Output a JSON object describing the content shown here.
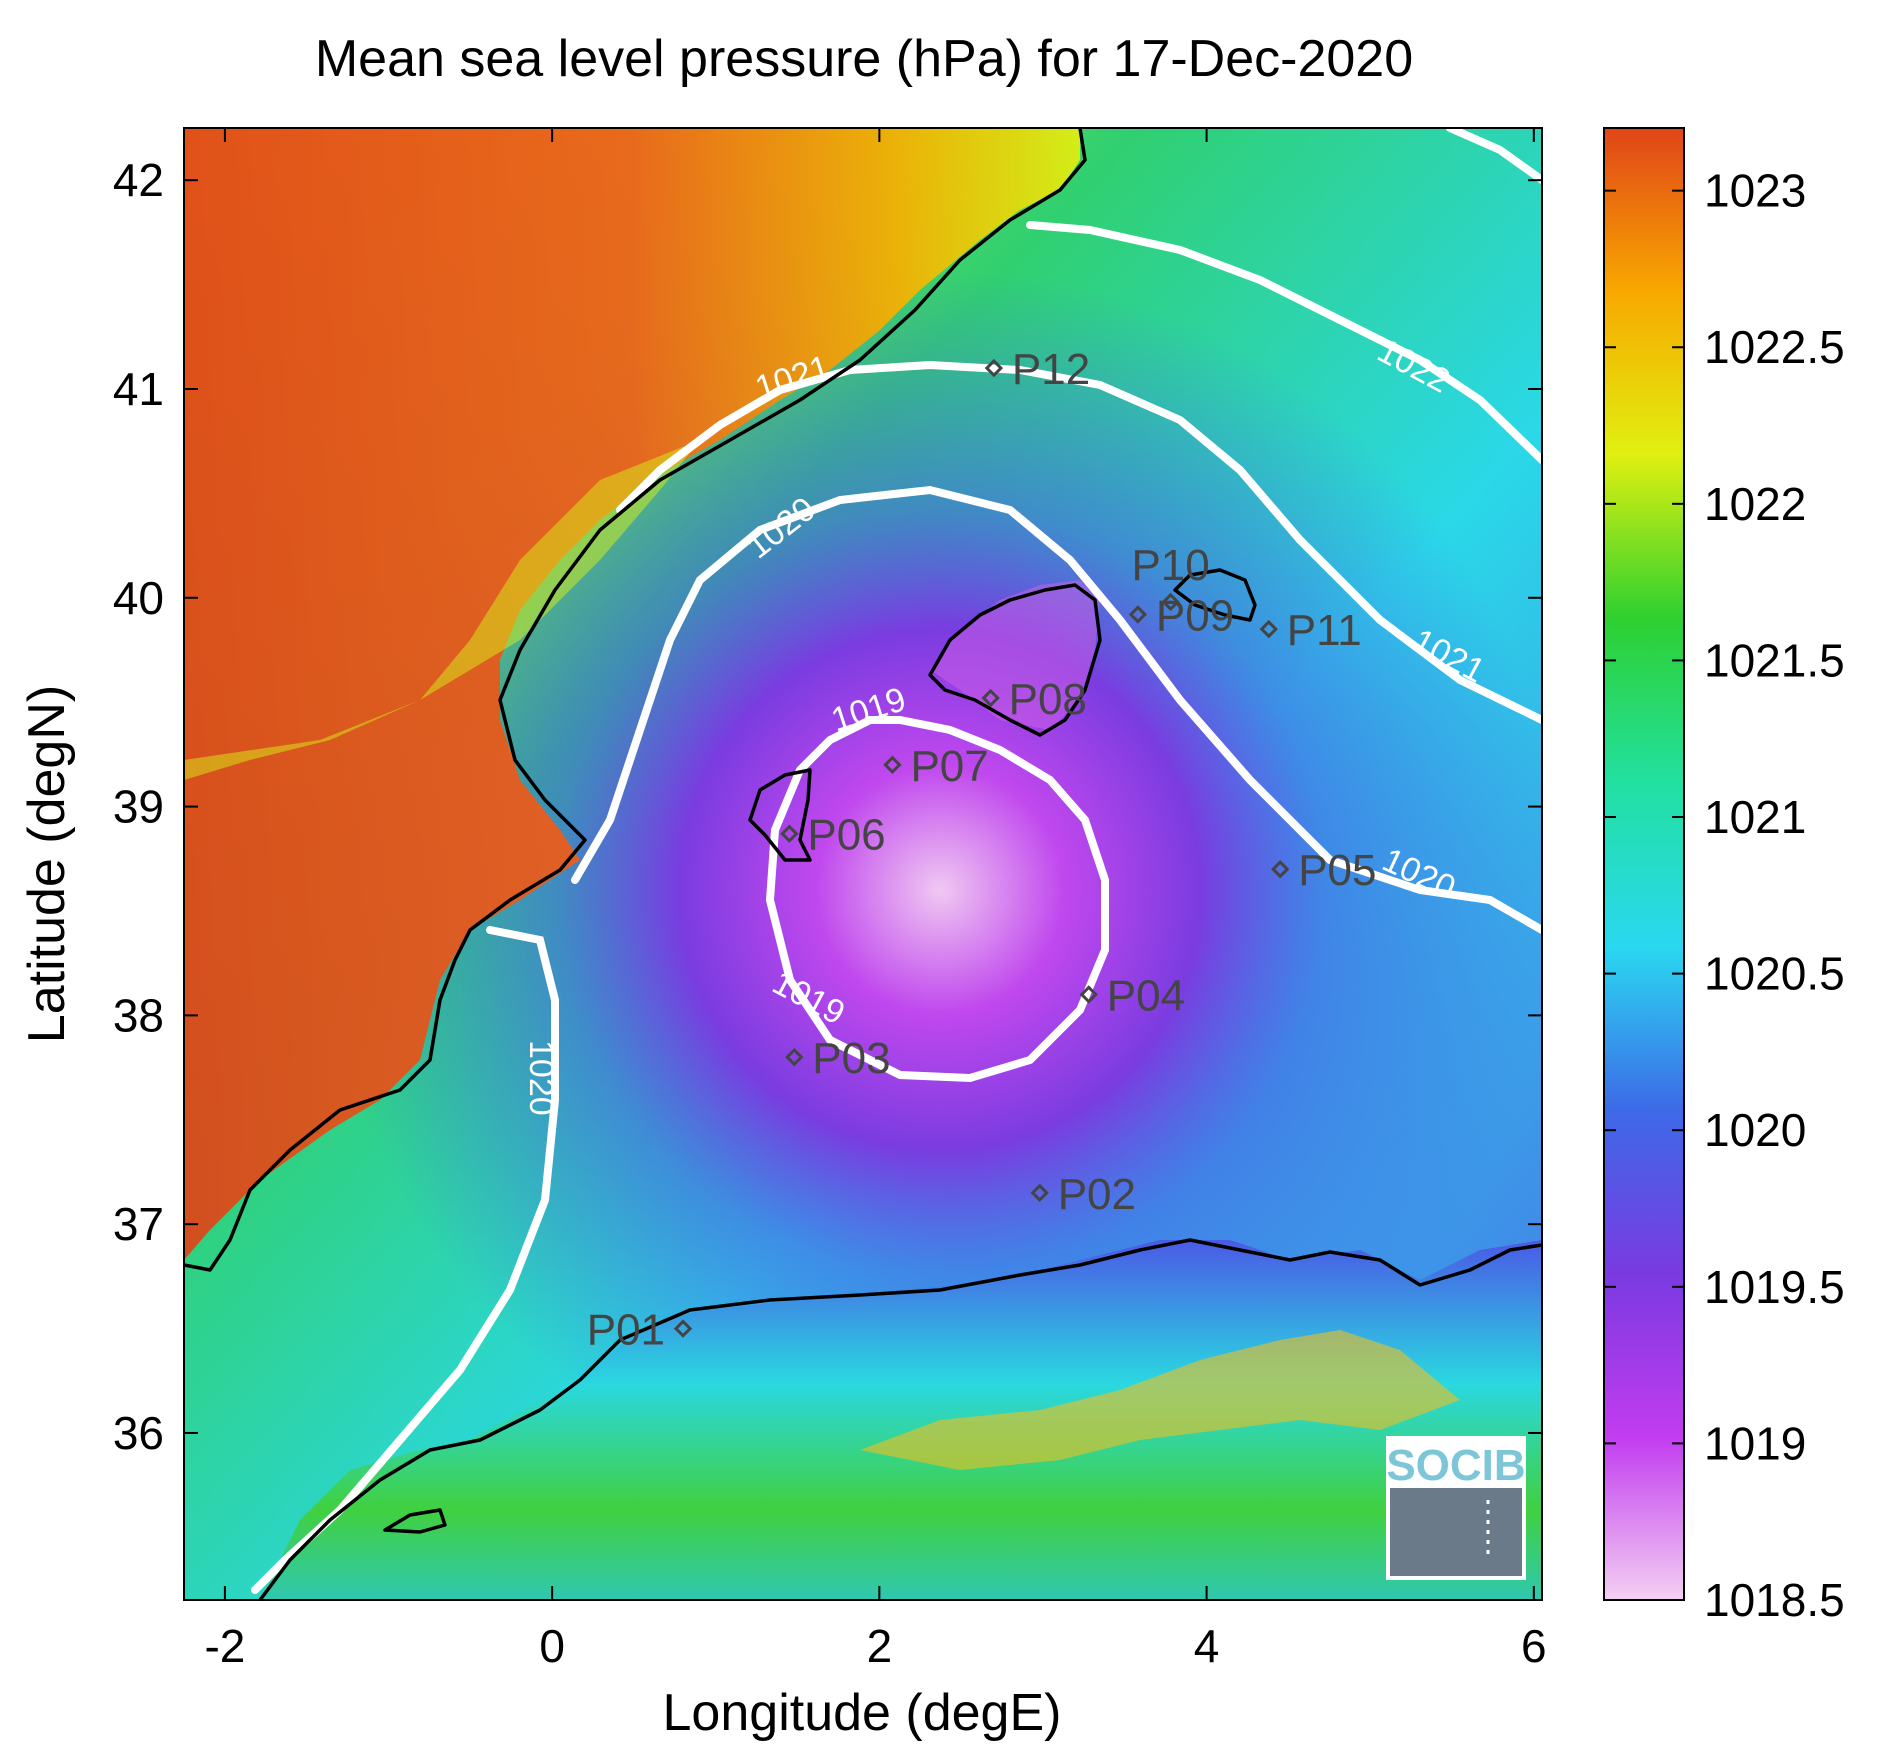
{
  "figure": {
    "title": "Mean sea level pressure (hPa) for 17-Dec-2020",
    "xlabel": "Longitude (degE)",
    "ylabel": "Latitude (degN)"
  },
  "axes": {
    "x_ticks": [
      "-2",
      "0",
      "2",
      "4",
      "6"
    ],
    "y_ticks": [
      "36",
      "37",
      "38",
      "39",
      "40",
      "41",
      "42"
    ],
    "xlim": [
      -2.25,
      6.05
    ],
    "ylim": [
      35.2,
      42.25
    ]
  },
  "colorbar": {
    "ticks": [
      "1018.5",
      "1019",
      "1019.5",
      "1020",
      "1020.5",
      "1021",
      "1021.5",
      "1022",
      "1022.5",
      "1023"
    ],
    "range": [
      1018.5,
      1023.2
    ],
    "colormap": [
      "#f4d0f2",
      "#c23cf0",
      "#7a3ae0",
      "#3d6ae8",
      "#2ad8f0",
      "#22e0a0",
      "#2ed030",
      "#e0f010",
      "#f8a800",
      "#e04418"
    ]
  },
  "stations": [
    {
      "id": "P01",
      "lon": 0.8,
      "lat": 36.5
    },
    {
      "id": "P02",
      "lon": 2.98,
      "lat": 37.15
    },
    {
      "id": "P03",
      "lon": 1.48,
      "lat": 37.8
    },
    {
      "id": "P04",
      "lon": 3.28,
      "lat": 38.1
    },
    {
      "id": "P05",
      "lon": 4.45,
      "lat": 38.7
    },
    {
      "id": "P06",
      "lon": 1.45,
      "lat": 38.87
    },
    {
      "id": "P07",
      "lon": 2.08,
      "lat": 39.2
    },
    {
      "id": "P08",
      "lon": 2.68,
      "lat": 39.52
    },
    {
      "id": "P09",
      "lon": 3.58,
      "lat": 39.92
    },
    {
      "id": "P10",
      "lon": 3.78,
      "lat": 39.98
    },
    {
      "id": "P11",
      "lon": 4.38,
      "lat": 39.85
    },
    {
      "id": "P12",
      "lon": 2.7,
      "lat": 41.1
    }
  ],
  "contour_labels": [
    "1021",
    "1020",
    "1019",
    "1019",
    "1022",
    "1021",
    "1020",
    "1020"
  ],
  "logo": {
    "text": "SOCIB"
  },
  "colors": {
    "contour": "#ffffff",
    "coast": "#000000",
    "marker": "#444444"
  }
}
